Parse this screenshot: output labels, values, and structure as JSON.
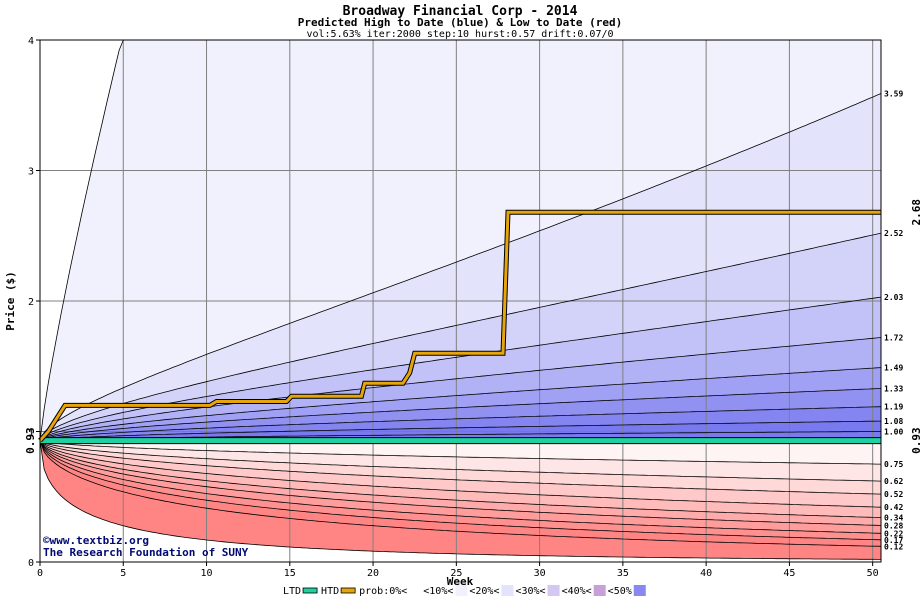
{
  "chart_data": {
    "type": "area",
    "title": "Broadway Financial Corp - 2014",
    "subtitle": "Predicted High to Date (blue) &  Low to Date (red)",
    "params": "vol:5.63% iter:2000 step:10 hurst:0.57 drift:0.07/0",
    "xlabel": "Week",
    "ylabel": "Price ($)",
    "xlim": [
      0,
      50.5
    ],
    "ylim": [
      0,
      4
    ],
    "x_ticks": [
      0,
      5,
      10,
      15,
      20,
      25,
      30,
      35,
      40,
      45,
      50
    ],
    "y_ticks": [
      0,
      1,
      2,
      3,
      4
    ],
    "start_price": 0.93,
    "start_price_label": "0.93",
    "htd_final": 2.68,
    "htd_final_label": "2.68",
    "ltd_final_label": "0.93",
    "grid": true,
    "high_quantiles": [
      {
        "label": "3.59",
        "final": 3.59
      },
      {
        "label": "2.52",
        "final": 2.52
      },
      {
        "label": "2.03",
        "final": 2.03
      },
      {
        "label": "1.72",
        "final": 1.72
      },
      {
        "label": "1.49",
        "final": 1.49
      },
      {
        "label": "1.33",
        "final": 1.33
      },
      {
        "label": "1.19",
        "final": 1.19
      },
      {
        "label": "1.08",
        "final": 1.08
      },
      {
        "label": "1.00",
        "final": 1.0
      }
    ],
    "low_quantiles": [
      {
        "label": "0.75",
        "final": 0.75
      },
      {
        "label": "0.62",
        "final": 0.62
      },
      {
        "label": "0.52",
        "final": 0.52
      },
      {
        "label": "0.42",
        "final": 0.42
      },
      {
        "label": "0.34",
        "final": 0.34
      },
      {
        "label": "0.28",
        "final": 0.28
      },
      {
        "label": "0.22",
        "final": 0.22
      },
      {
        "label": "0.17",
        "final": 0.17
      },
      {
        "label": "0.12",
        "final": 0.12
      }
    ],
    "htd_path": [
      [
        0,
        0.93
      ],
      [
        0.5,
        1.0
      ],
      [
        1.5,
        1.2
      ],
      [
        10.2,
        1.2
      ],
      [
        10.6,
        1.23
      ],
      [
        14.8,
        1.23
      ],
      [
        15.1,
        1.27
      ],
      [
        19.3,
        1.27
      ],
      [
        19.5,
        1.37
      ],
      [
        21.8,
        1.37
      ],
      [
        22.2,
        1.45
      ],
      [
        22.5,
        1.6
      ],
      [
        27.8,
        1.6
      ],
      [
        28.1,
        2.68
      ],
      [
        50.5,
        2.68
      ]
    ],
    "ltd_path": [
      [
        0,
        0.93
      ],
      [
        50.5,
        0.93
      ]
    ],
    "colors": {
      "blue_bands": [
        "#f1f1fd",
        "#e3e3fb",
        "#d3d3fa",
        "#c2c2f8",
        "#b1b1f6",
        "#a0a0f4",
        "#9191f2",
        "#8585f1",
        "#7a7af0"
      ],
      "red_bands": [
        "#fff4f4",
        "#ffe6e6",
        "#ffd8d8",
        "#ffc9c9",
        "#ffbaba",
        "#ffabab",
        "#ff9c9c",
        "#ff9090",
        "#ff8585"
      ],
      "htd": "#e6a50a",
      "ltd": "#20d0a0",
      "start_label": "#006600",
      "htd_label": "#b8860b",
      "ltd_label": "#008866"
    },
    "credit_line1": "©www.textbiz.org",
    "credit_line2": "The Research Foundation of SUNY",
    "legend": [
      {
        "label": "LTD",
        "kind": "line",
        "color": "#20d0a0"
      },
      {
        "label": "HTD",
        "kind": "line",
        "color": "#e6a50a"
      },
      {
        "label": "prob:0%<",
        "kind": "box",
        "color": "#ffffff"
      },
      {
        "label": "<10%<",
        "kind": "box",
        "color": "#f1f1fd"
      },
      {
        "label": "<20%<",
        "kind": "box",
        "color": "#e3e3fb"
      },
      {
        "label": "<30%<",
        "kind": "box",
        "color": "#d3c8f0"
      },
      {
        "label": "<40%<",
        "kind": "box",
        "color": "#c8a0d8"
      },
      {
        "label": "<50%",
        "kind": "box",
        "color": "#8888f0"
      }
    ]
  }
}
